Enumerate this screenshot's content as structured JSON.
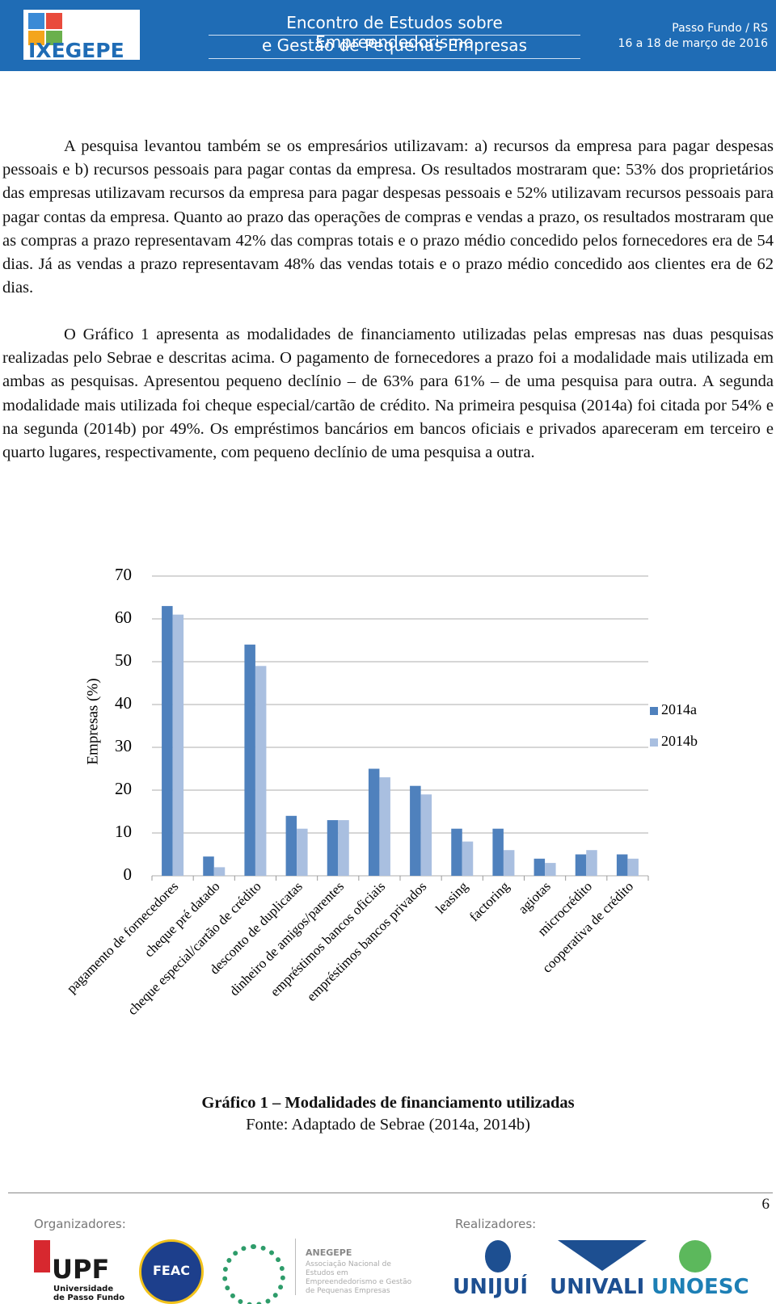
{
  "header": {
    "logo": "IXEGEPE",
    "title_lines": [
      "Encontro de Estudos sobre Empreendedorismo",
      "e Gestão de Pequenas Empresas"
    ],
    "place": "Passo Fundo / RS",
    "dates": "16 a 18 de março de 2016"
  },
  "paragraphs": [
    "A pesquisa levantou também se os empresários utilizavam: a) recursos da empresa para pagar despesas pessoais e b) recursos pessoais para pagar contas da empresa. Os resultados mostraram que: 53% dos proprietários das empresas utilizavam recursos da empresa para pagar despesas pessoais e 52% utilizavam recursos pessoais para pagar contas da empresa. Quanto ao prazo das operações de compras e vendas a prazo, os resultados mostraram que as compras a prazo representavam 42% das compras totais e o prazo médio concedido pelos fornecedores era de 54 dias. Já as vendas a prazo representavam 48% das vendas totais e o prazo médio concedido aos clientes era de 62 dias.",
    "O Gráfico 1 apresenta as modalidades de financiamento utilizadas pelas empresas nas duas pesquisas realizadas pelo Sebrae e descritas acima. O pagamento de fornecedores a prazo foi a modalidade mais utilizada em ambas as pesquisas. Apresentou pequeno declínio – de 63% para 61% – de uma pesquisa para outra. A segunda modalidade mais utilizada foi cheque especial/cartão de crédito. Na primeira pesquisa (2014a) foi citada por 54% e na segunda (2014b) por 49%. Os empréstimos bancários em bancos oficiais e privados apareceram em terceiro e quarto lugares, respectivamente, com pequeno declínio de uma pesquisa a outra."
  ],
  "chart_data": {
    "type": "bar",
    "y_label": "Empresas (%)",
    "categories": [
      "pagamento de fornecedores",
      "cheque pré datado",
      "cheque especial/cartão de crédito",
      "desconto de duplicatas",
      "dinheiro de amigos/parentes",
      "empréstimos bancos oficiais",
      "empréstimos bancos privados",
      "leasing",
      "factoring",
      "agiotas",
      "microcrédito",
      "cooperativa de crédito"
    ],
    "series": [
      {
        "name": "2014a",
        "color": "#4f81bd",
        "values": [
          63,
          4.5,
          54,
          14,
          13,
          25,
          21,
          11,
          11,
          4,
          5,
          5
        ]
      },
      {
        "name": "2014b",
        "color": "#a9bfe0",
        "values": [
          61,
          2,
          49,
          11,
          13,
          23,
          19,
          8,
          6,
          3,
          6,
          4
        ]
      }
    ],
    "ylim": [
      0,
      70
    ],
    "yticks": [
      0,
      10,
      20,
      30,
      40,
      50,
      60,
      70
    ],
    "grid": true,
    "legend": "right"
  },
  "caption": {
    "title": "Gráfico 1 – Modalidades de financiamento utilizadas",
    "source": "Fonte: Adaptado de Sebrae (2014a, 2014b)"
  },
  "footer": {
    "page": "6",
    "organizers": "Organizadores:",
    "realizers": "Realizadores:",
    "upf": "UPF",
    "upf_sub": "Universidade de Passo Fundo",
    "feac": "FEAC",
    "anegepe": "ANEGEPE",
    "anegepe_sub": "Associação Nacional de Estudos em Empreendedorismo e Gestão de Pequenas Empresas",
    "unijui": "UNIJUÍ",
    "univali": "UNIVALI",
    "unoesc": "UNOESC"
  }
}
